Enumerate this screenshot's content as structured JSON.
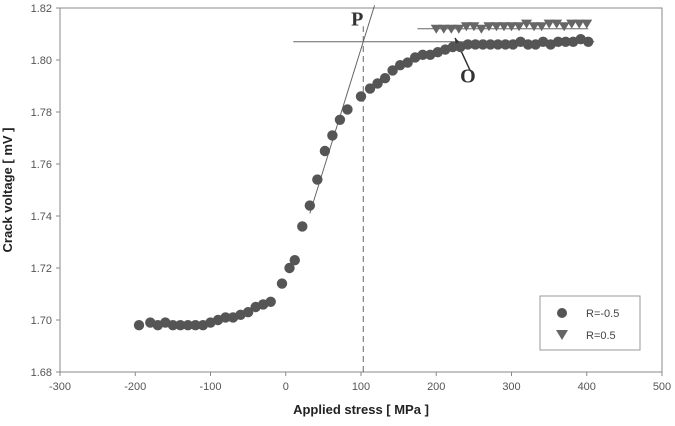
{
  "chart_data": {
    "type": "scatter",
    "title": "",
    "xlabel": "Applied stress  [ MPa ]",
    "ylabel": "Crack voltage  [ mV ]",
    "xlim": [
      -300,
      500
    ],
    "ylim": [
      1.68,
      1.82
    ],
    "x_ticks": [
      "-300",
      "-200",
      "-100",
      "0",
      "100",
      "200",
      "300",
      "400",
      "500"
    ],
    "y_ticks": [
      "1.68",
      "1.70",
      "1.72",
      "1.74",
      "1.76",
      "1.78",
      "1.80",
      "1.82"
    ],
    "grid": false,
    "legend_position": "bottom-right",
    "series": [
      {
        "name": "R=-0.5",
        "marker": "circle",
        "color": "#555555",
        "points": [
          [
            -195,
            1.698
          ],
          [
            -180,
            1.699
          ],
          [
            -170,
            1.698
          ],
          [
            -160,
            1.699
          ],
          [
            -150,
            1.698
          ],
          [
            -140,
            1.698
          ],
          [
            -130,
            1.698
          ],
          [
            -120,
            1.698
          ],
          [
            -110,
            1.698
          ],
          [
            -100,
            1.699
          ],
          [
            -90,
            1.7
          ],
          [
            -80,
            1.701
          ],
          [
            -70,
            1.701
          ],
          [
            -60,
            1.702
          ],
          [
            -50,
            1.703
          ],
          [
            -40,
            1.705
          ],
          [
            -30,
            1.706
          ],
          [
            -20,
            1.707
          ],
          [
            -5,
            1.714
          ],
          [
            5,
            1.72
          ],
          [
            12,
            1.723
          ],
          [
            22,
            1.736
          ],
          [
            32,
            1.744
          ],
          [
            42,
            1.754
          ],
          [
            52,
            1.765
          ],
          [
            62,
            1.771
          ],
          [
            72,
            1.777
          ],
          [
            82,
            1.781
          ],
          [
            100,
            1.786
          ],
          [
            112,
            1.789
          ],
          [
            122,
            1.791
          ],
          [
            132,
            1.793
          ],
          [
            142,
            1.796
          ],
          [
            152,
            1.798
          ],
          [
            162,
            1.799
          ],
          [
            172,
            1.801
          ],
          [
            182,
            1.802
          ],
          [
            192,
            1.802
          ],
          [
            202,
            1.803
          ],
          [
            212,
            1.804
          ],
          [
            222,
            1.805
          ],
          [
            232,
            1.805
          ],
          [
            242,
            1.806
          ],
          [
            252,
            1.806
          ],
          [
            262,
            1.806
          ],
          [
            272,
            1.806
          ],
          [
            282,
            1.806
          ],
          [
            292,
            1.806
          ],
          [
            302,
            1.806
          ],
          [
            312,
            1.807
          ],
          [
            322,
            1.806
          ],
          [
            332,
            1.806
          ],
          [
            342,
            1.807
          ],
          [
            352,
            1.806
          ],
          [
            362,
            1.807
          ],
          [
            372,
            1.807
          ],
          [
            382,
            1.807
          ],
          [
            392,
            1.808
          ],
          [
            402,
            1.807
          ]
        ]
      },
      {
        "name": "R=0.5",
        "marker": "triangle-down",
        "color": "#666666",
        "points": [
          [
            200,
            1.812
          ],
          [
            210,
            1.812
          ],
          [
            220,
            1.812
          ],
          [
            230,
            1.812
          ],
          [
            240,
            1.813
          ],
          [
            250,
            1.813
          ],
          [
            260,
            1.812
          ],
          [
            270,
            1.813
          ],
          [
            280,
            1.813
          ],
          [
            290,
            1.813
          ],
          [
            300,
            1.813
          ],
          [
            310,
            1.813
          ],
          [
            320,
            1.814
          ],
          [
            330,
            1.813
          ],
          [
            340,
            1.813
          ],
          [
            350,
            1.814
          ],
          [
            360,
            1.814
          ],
          [
            370,
            1.813
          ],
          [
            380,
            1.814
          ],
          [
            390,
            1.814
          ],
          [
            400,
            1.814
          ]
        ]
      }
    ],
    "annotations": [
      {
        "label": "P",
        "x": 95,
        "y": 1.816
      },
      {
        "label": "O",
        "x": 242,
        "y": 1.794
      }
    ],
    "reference_lines": {
      "p_horizontal": {
        "x0": 10,
        "x1": 410,
        "y": 1.807
      },
      "p_tangent": {
        "x0": 32,
        "y0": 1.741,
        "x1": 118,
        "y1": 1.821
      },
      "p_vertical": {
        "x": 103,
        "y0": 1.68,
        "y1": 1.813
      },
      "o_horizontal": {
        "x0": 175,
        "x1": 402,
        "y": 1.812
      },
      "o_arrow": {
        "x0": 245,
        "y0": 1.796,
        "x1": 225,
        "y1": 1.8085
      }
    }
  }
}
